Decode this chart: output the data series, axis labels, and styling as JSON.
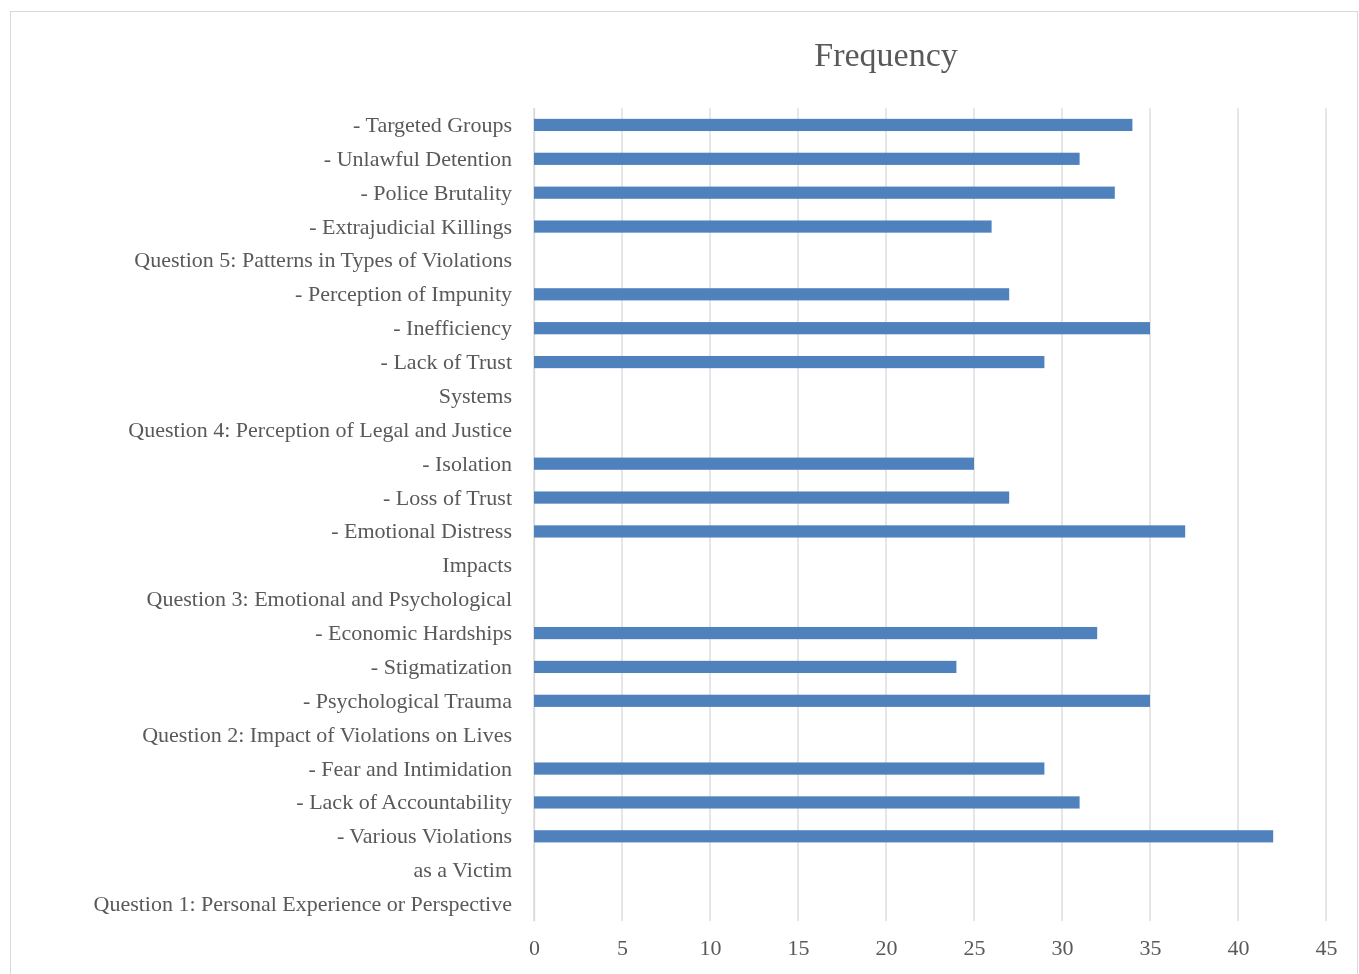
{
  "chart_data": {
    "type": "bar",
    "orientation": "horizontal",
    "title": "Frequency",
    "categories": [
      "- Targeted Groups",
      "- Unlawful Detention",
      "- Police Brutality",
      "- Extrajudicial Killings",
      "Question 5: Patterns in Types of Violations",
      "- Perception of Impunity",
      "- Inefficiency",
      "- Lack of Trust",
      "Systems",
      "Question 4: Perception of Legal and Justice",
      "- Isolation",
      "- Loss of Trust",
      "- Emotional Distress",
      "Impacts",
      "Question 3: Emotional and Psychological",
      "- Economic Hardships",
      "- Stigmatization",
      "- Psychological Trauma",
      "Question 2: Impact of Violations on Lives",
      "- Fear and Intimidation",
      "- Lack of Accountability",
      "- Various Violations",
      "as a Victim",
      "Question 1: Personal Experience or Perspective"
    ],
    "values": [
      34,
      31,
      33,
      26,
      null,
      27,
      35,
      29,
      null,
      null,
      25,
      27,
      37,
      null,
      null,
      32,
      24,
      35,
      null,
      29,
      31,
      42,
      null,
      null
    ],
    "color": "#4f81bd",
    "xlim": [
      0,
      45
    ],
    "xticks": [
      0,
      5,
      10,
      15,
      20,
      25,
      30,
      35,
      40,
      45
    ],
    "grid": "x"
  }
}
